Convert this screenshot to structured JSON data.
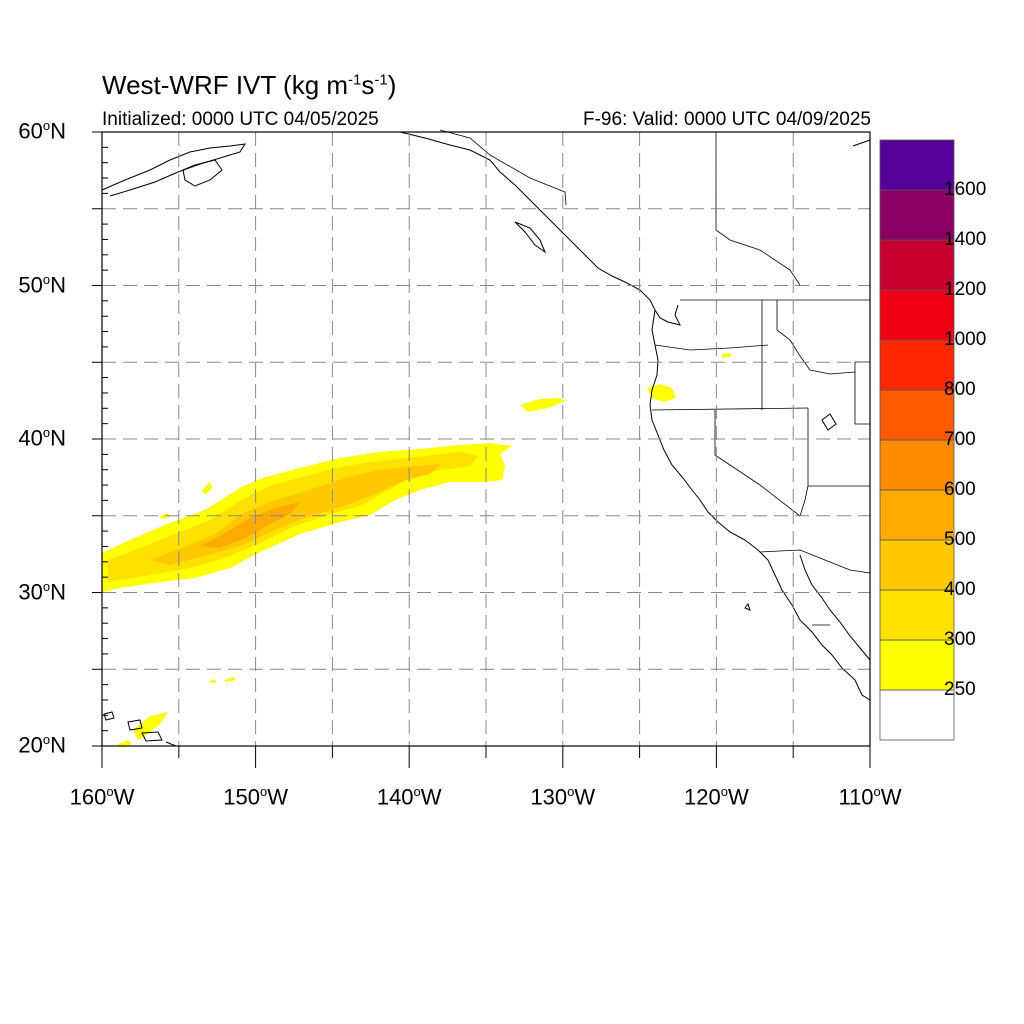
{
  "header": {
    "title_prefix": "West-WRF IVT (kg m",
    "title_exp1": "-1",
    "title_mid": "s",
    "title_exp2": "-1",
    "title_suffix": ")",
    "initialized": "Initialized: 0000 UTC 04/05/2025",
    "valid": "F-96: Valid: 0000 UTC 04/09/2025"
  },
  "map": {
    "lon_range": [
      -160,
      -110
    ],
    "lat_range": [
      20,
      60
    ],
    "grid_dashed": true,
    "lat_labels": [
      {
        "value": 60,
        "text": "60",
        "hemi": "N"
      },
      {
        "value": 50,
        "text": "50",
        "hemi": "N"
      },
      {
        "value": 40,
        "text": "40",
        "hemi": "N"
      },
      {
        "value": 30,
        "text": "30",
        "hemi": "N"
      },
      {
        "value": 20,
        "text": "20",
        "hemi": "N"
      }
    ],
    "lon_labels": [
      {
        "value": -160,
        "text": "160",
        "hemi": "W"
      },
      {
        "value": -150,
        "text": "150",
        "hemi": "W"
      },
      {
        "value": -140,
        "text": "140",
        "hemi": "W"
      },
      {
        "value": -130,
        "text": "130",
        "hemi": "W"
      },
      {
        "value": -120,
        "text": "120",
        "hemi": "W"
      },
      {
        "value": -110,
        "text": "110",
        "hemi": "W"
      }
    ]
  },
  "colorbar": {
    "levels": [
      "250",
      "300",
      "400",
      "500",
      "600",
      "700",
      "800",
      "1000",
      "1200",
      "1400",
      "1600"
    ],
    "colors": [
      "#ffffff",
      "#ffff00",
      "#ffe100",
      "#ffc800",
      "#ffaa00",
      "#ff8c00",
      "#ff5a00",
      "#ff2800",
      "#f00014",
      "#c80032",
      "#8c0064",
      "#550096"
    ]
  }
}
